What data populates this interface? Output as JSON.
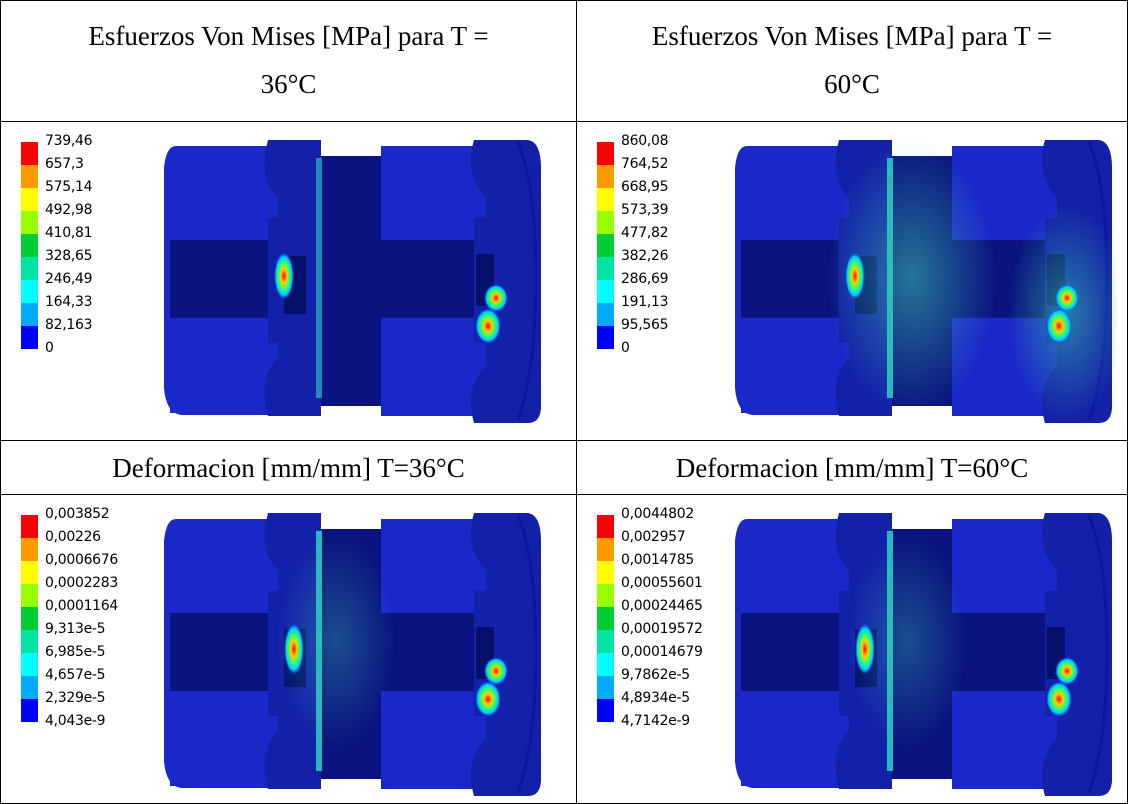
{
  "headers": {
    "top_left_line1": "Esfuerzos Von Mises  [MPa] para T =",
    "top_left_line2": "36°C",
    "top_right_line1": "Esfuerzos Von Mises  [MPa] para T =",
    "top_right_line2": "60°C",
    "bottom_left": "Deformacion [mm/mm] T=36°C",
    "bottom_right": "Deformacion [mm/mm] T=60°C"
  },
  "legend_colors": [
    "#ff0000",
    "#ff9900",
    "#ffff00",
    "#99ff00",
    "#00cc33",
    "#00e6a0",
    "#00ffff",
    "#00aaff",
    "#0000ff"
  ],
  "panels": {
    "stress_36": {
      "labels": [
        "739,46",
        "657,3",
        "575,14",
        "492,98",
        "410,81",
        "328,65",
        "246,49",
        "164,33",
        "82,163",
        "0"
      ]
    },
    "stress_60": {
      "labels": [
        "860,08",
        "764,52",
        "668,95",
        "573,39",
        "477,82",
        "382,26",
        "286,69",
        "191,13",
        "95,565",
        "0"
      ]
    },
    "strain_36": {
      "labels": [
        "0,003852",
        "0,00226",
        "0,0006676",
        "0,0002283",
        "0,0001164",
        "9,313e-5",
        "6,985e-5",
        "4,657e-5",
        "2,329e-5",
        "4,043e-9"
      ]
    },
    "strain_60": {
      "labels": [
        "0,0044802",
        "0,002957",
        "0,0014785",
        "0,00055601",
        "0,00024465",
        "0,00019572",
        "0,00014679",
        "9,7862e-5",
        "4,8934e-5",
        "4,7142e-9"
      ]
    }
  }
}
